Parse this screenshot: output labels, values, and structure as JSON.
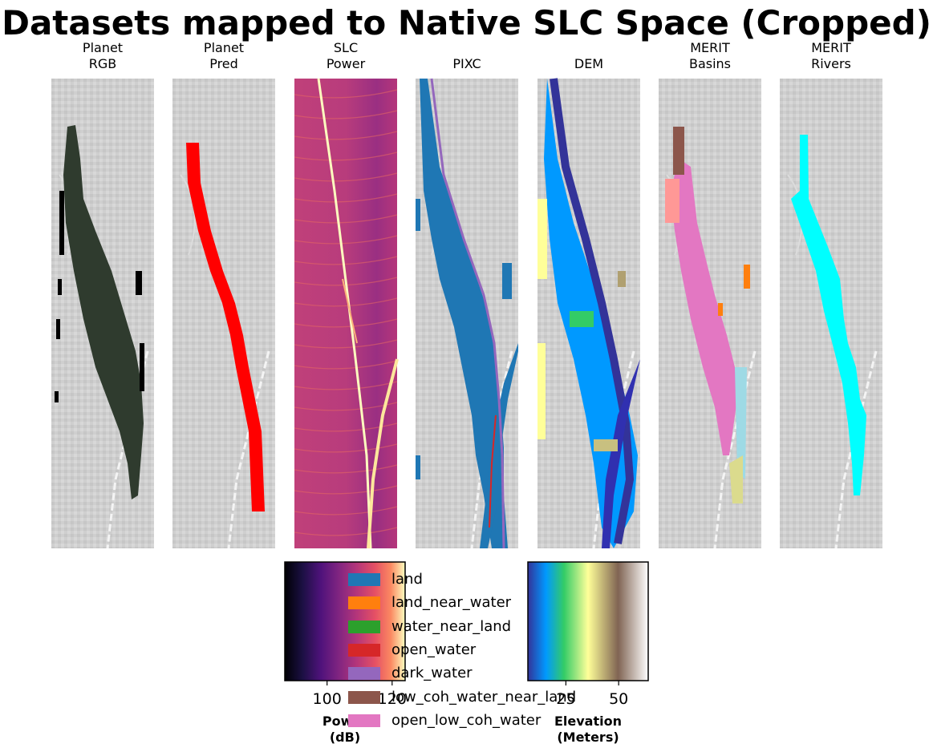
{
  "chart_data": {
    "type": "heatmap",
    "title": "Datasets mapped to Native SLC Space (Cropped)",
    "panels": [
      {
        "id": "planet-rgb",
        "title": "Planet\nRGB"
      },
      {
        "id": "planet-pred",
        "title": "Planet\nPred"
      },
      {
        "id": "slc-power",
        "title": "SLC\nPower"
      },
      {
        "id": "pixc",
        "title": "\nPIXC"
      },
      {
        "id": "dem",
        "title": "\nDEM"
      },
      {
        "id": "merit-basins",
        "title": "MERIT\nBasins"
      },
      {
        "id": "merit-rivers",
        "title": "MERIT\nRivers"
      }
    ],
    "colorbars": [
      {
        "id": "power",
        "label": "Power\n(dB)",
        "cmap": "magma",
        "ticks": [
          "100",
          "120"
        ],
        "tick_values": [
          100,
          120
        ],
        "range": [
          87,
          124
        ]
      },
      {
        "id": "elevation",
        "label": "Elevation\n(Meters)",
        "cmap": "terrain",
        "ticks": [
          "25",
          "50"
        ],
        "tick_values": [
          25,
          50
        ],
        "range": [
          7,
          64
        ]
      }
    ],
    "legend": [
      {
        "label": "land",
        "color": "#1f77b4"
      },
      {
        "label": "land_near_water",
        "color": "#ff7f0e"
      },
      {
        "label": "water_near_land",
        "color": "#2ca02c"
      },
      {
        "label": "open_water",
        "color": "#d62728"
      },
      {
        "label": "dark_water",
        "color": "#9467bd"
      },
      {
        "label": "low_coh_water_near_land",
        "color": "#8c564b"
      },
      {
        "label": "open_low_coh_water",
        "color": "#e377c2"
      }
    ],
    "mask_colors": {
      "planet_rgb": "#2f3b2e",
      "planet_pred": "#ff0000",
      "merit_basins": "#e377c2",
      "merit_rivers": "#00ffff"
    }
  }
}
